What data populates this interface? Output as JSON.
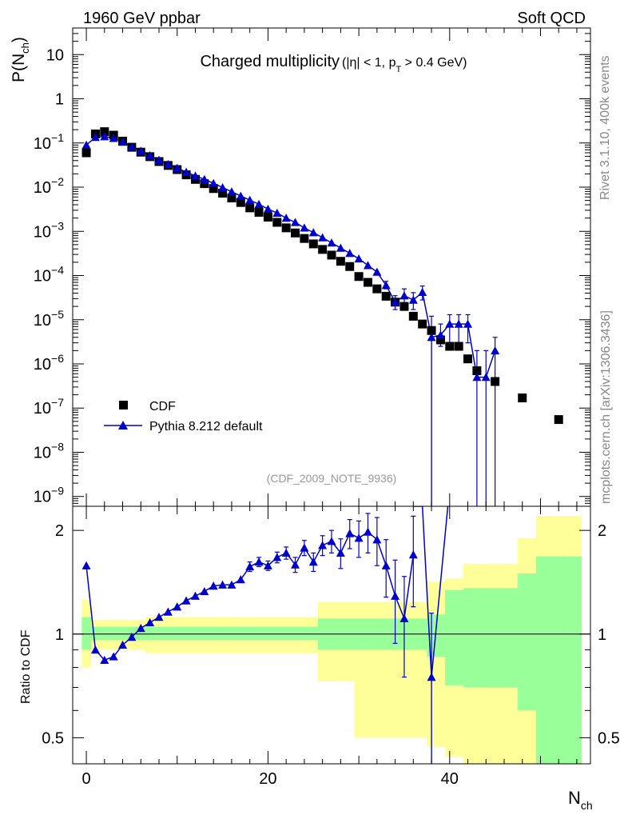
{
  "header": {
    "left": "1960 GeV ppbar",
    "right": "Soft QCD"
  },
  "title_main": "Charged multiplicity",
  "title_cuts": {
    "open": "(|η| < 1, p",
    "sub": "T",
    "close": " > 0.4 GeV)"
  },
  "analysis_id": "(CDF_2009_NOTE_9936)",
  "side_texts": {
    "rivet": "Rivet 3.1.10,  400k events",
    "mcplots": "mcplots.cern.ch [arXiv:1306.3436]"
  },
  "colors": {
    "data": "#000000",
    "mc": "#0000cc",
    "band_inner": "#99ff99",
    "band_outer": "#ffff99",
    "id_text": "#999999",
    "side_text": "#888888"
  },
  "chart_data": [
    {
      "type": "scatter",
      "panel": "main",
      "ylabel": {
        "main": "P(N",
        "sub": "ch",
        "close": ")"
      },
      "yscale": "log",
      "ylim": [
        6e-10,
        40
      ],
      "xlim": [
        -1.5,
        55.5
      ],
      "yticks": [
        {
          "value": 10,
          "label": "10",
          "exp": ""
        },
        {
          "value": 1,
          "label": "1",
          "exp": ""
        },
        {
          "value": 0.1,
          "label": "10",
          "exp": "−1"
        },
        {
          "value": 0.01,
          "label": "10",
          "exp": "−2"
        },
        {
          "value": 0.001,
          "label": "10",
          "exp": "−3"
        },
        {
          "value": 0.0001,
          "label": "10",
          "exp": "−4"
        },
        {
          "value": 1e-05,
          "label": "10",
          "exp": "−5"
        },
        {
          "value": 1e-06,
          "label": "10",
          "exp": "−6"
        },
        {
          "value": 1e-07,
          "label": "10",
          "exp": "−7"
        },
        {
          "value": 1e-08,
          "label": "10",
          "exp": "−8"
        },
        {
          "value": 1e-09,
          "label": "10",
          "exp": "−9"
        }
      ],
      "legend_position": "bottom-left",
      "series": [
        {
          "name": "CDF",
          "marker": "square",
          "x": [
            0,
            1,
            2,
            3,
            4,
            5,
            6,
            7,
            8,
            9,
            10,
            11,
            12,
            13,
            14,
            15,
            16,
            17,
            18,
            19,
            20,
            21,
            22,
            23,
            24,
            25,
            26,
            27,
            28,
            29,
            30,
            31,
            32,
            33,
            34,
            35,
            36,
            37,
            38,
            39,
            40,
            41,
            42,
            43,
            45,
            48,
            52
          ],
          "y": [
            0.06,
            0.16,
            0.18,
            0.15,
            0.11,
            0.08,
            0.062,
            0.049,
            0.038,
            0.031,
            0.025,
            0.019,
            0.015,
            0.012,
            0.0093,
            0.0073,
            0.0057,
            0.0045,
            0.0034,
            0.0027,
            0.0021,
            0.0016,
            0.0012,
            0.00092,
            0.00069,
            0.00052,
            0.00039,
            0.00029,
            0.00021,
            0.00016,
            9.5e-05,
            7e-05,
            5e-05,
            3.4e-05,
            2.5e-05,
            2e-05,
            1.2e-05,
            8e-06,
            5.7e-06,
            3.5e-06,
            2.5e-06,
            2.5e-06,
            1.3e-06,
            7e-07,
            4e-07,
            1.7e-07,
            5.5e-08
          ]
        },
        {
          "name": "Pythia 8.212 default",
          "marker": "triangle",
          "x": [
            0,
            1,
            2,
            3,
            4,
            5,
            6,
            7,
            8,
            9,
            10,
            11,
            12,
            13,
            14,
            15,
            16,
            17,
            18,
            19,
            20,
            21,
            22,
            23,
            24,
            25,
            26,
            27,
            28,
            29,
            30,
            31,
            32,
            33,
            34,
            35,
            36,
            37,
            38,
            39,
            40,
            41,
            42,
            43,
            44,
            45
          ],
          "y": [
            0.09,
            0.135,
            0.14,
            0.128,
            0.105,
            0.082,
            0.066,
            0.052,
            0.041,
            0.033,
            0.027,
            0.022,
            0.018,
            0.015,
            0.0122,
            0.0098,
            0.0079,
            0.0063,
            0.0051,
            0.0041,
            0.0032,
            0.0026,
            0.002,
            0.0016,
            0.0012,
            0.00094,
            0.00072,
            0.00055,
            0.00042,
            0.00032,
            0.00024,
            0.00017,
            0.00012,
            6e-05,
            2.5e-05,
            3.5e-05,
            2.8e-05,
            4.2e-05,
            4e-06,
            4.5e-06,
            8e-06,
            8e-06,
            8e-06,
            5e-07,
            5e-07,
            2e-06
          ],
          "err_lo": [
            0,
            0,
            0,
            0,
            0,
            0,
            0,
            0,
            0,
            0,
            0,
            0,
            0,
            0,
            0,
            0,
            0,
            0,
            0,
            0,
            0,
            0,
            0,
            0,
            0,
            0,
            0,
            0,
            0,
            0,
            0,
            0,
            0,
            1e-05,
            8e-06,
            1.3e-05,
            1.1e-05,
            1.4e-05,
            4e-06,
            2e-06,
            5e-06,
            5e-06,
            5e-06,
            5e-07,
            5e-07,
            2e-06
          ],
          "err_hi": [
            0,
            0,
            0,
            0,
            0,
            0,
            0,
            0,
            0,
            0,
            0,
            0,
            0,
            0,
            0,
            0,
            0,
            0,
            0,
            0,
            0,
            0,
            0,
            0,
            0,
            0,
            0,
            0,
            0,
            0,
            0,
            0,
            0,
            1.4e-05,
            1e-05,
            1.5e-05,
            1.3e-05,
            1.6e-05,
            8e-06,
            3.5e-06,
            5e-06,
            5e-06,
            5e-06,
            1.5e-06,
            1.5e-06,
            2e-06
          ]
        }
      ]
    },
    {
      "type": "line",
      "panel": "ratio",
      "ylabel": "Ratio to CDF",
      "xlabel": {
        "main": "N",
        "sub": "ch"
      },
      "yscale": "log",
      "ylim": [
        0.42,
        2.35
      ],
      "xlim": [
        -1.5,
        55.5
      ],
      "xticks": [
        0,
        20,
        40
      ],
      "yticks": [
        0.5,
        1,
        2
      ],
      "reference_line": 1,
      "bands": {
        "edges": [
          0,
          1,
          2,
          3,
          4,
          5,
          6,
          7,
          8,
          9,
          10,
          11,
          12,
          13,
          14,
          15,
          16,
          17,
          18,
          19,
          20,
          21,
          22,
          23,
          24,
          25,
          26,
          27,
          28,
          29,
          30,
          31,
          32,
          33,
          34,
          35,
          36,
          37,
          38,
          39,
          40,
          41,
          42,
          43,
          44,
          45,
          46,
          47,
          48,
          49,
          50,
          51,
          52,
          53,
          54,
          55
        ],
        "inner_hi": [
          1.12,
          1.05,
          1.05,
          1.05,
          1.05,
          1.05,
          1.05,
          1.05,
          1.05,
          1.05,
          1.05,
          1.05,
          1.05,
          1.05,
          1.05,
          1.05,
          1.05,
          1.05,
          1.05,
          1.05,
          1.05,
          1.05,
          1.05,
          1.05,
          1.05,
          1.05,
          1.11,
          1.11,
          1.11,
          1.11,
          1.11,
          1.11,
          1.11,
          1.11,
          1.11,
          1.11,
          1.11,
          1.11,
          1.14,
          1.14,
          1.34,
          1.34,
          1.36,
          1.36,
          1.36,
          1.36,
          1.36,
          1.36,
          1.5,
          1.5,
          1.68,
          1.68,
          1.68,
          1.68,
          1.68
        ],
        "inner_lo": [
          0.9,
          0.96,
          0.96,
          0.96,
          0.96,
          0.96,
          0.96,
          0.96,
          0.96,
          0.96,
          0.96,
          0.96,
          0.96,
          0.96,
          0.96,
          0.96,
          0.96,
          0.96,
          0.96,
          0.96,
          0.96,
          0.96,
          0.96,
          0.96,
          0.96,
          0.96,
          0.9,
          0.9,
          0.9,
          0.9,
          0.9,
          0.9,
          0.9,
          0.9,
          0.9,
          0.9,
          0.9,
          0.9,
          0.86,
          0.86,
          0.71,
          0.71,
          0.7,
          0.7,
          0.7,
          0.7,
          0.7,
          0.7,
          0.6,
          0.6,
          0.42,
          0.42,
          0.42,
          0.42,
          0.42
        ],
        "outer_hi": [
          1.26,
          1.1,
          1.1,
          1.1,
          1.1,
          1.1,
          1.1,
          1.12,
          1.12,
          1.12,
          1.12,
          1.12,
          1.12,
          1.12,
          1.12,
          1.12,
          1.12,
          1.12,
          1.12,
          1.12,
          1.12,
          1.12,
          1.12,
          1.12,
          1.12,
          1.12,
          1.24,
          1.24,
          1.24,
          1.24,
          1.24,
          1.24,
          1.24,
          1.24,
          1.24,
          1.24,
          1.24,
          1.24,
          1.42,
          1.42,
          1.45,
          1.45,
          1.6,
          1.6,
          1.6,
          1.6,
          1.6,
          1.6,
          1.9,
          1.9,
          2.2,
          2.2,
          2.2,
          2.2,
          2.2
        ],
        "outer_lo": [
          0.8,
          0.9,
          0.9,
          0.9,
          0.9,
          0.9,
          0.9,
          0.88,
          0.88,
          0.88,
          0.88,
          0.88,
          0.88,
          0.88,
          0.88,
          0.88,
          0.88,
          0.88,
          0.88,
          0.88,
          0.88,
          0.88,
          0.88,
          0.88,
          0.88,
          0.88,
          0.73,
          0.73,
          0.73,
          0.73,
          0.5,
          0.5,
          0.5,
          0.5,
          0.5,
          0.5,
          0.5,
          0.5,
          0.47,
          0.47,
          0.44,
          0.44,
          0.42,
          0.42,
          0.42,
          0.42,
          0.42,
          0.42,
          0.42,
          0.42,
          0.42,
          0.42,
          0.42,
          0.42,
          0.42
        ]
      },
      "series": [
        {
          "name": "Pythia 8.212 default / CDF",
          "marker": "triangle",
          "x": [
            0,
            1,
            2,
            3,
            4,
            5,
            6,
            7,
            8,
            9,
            10,
            11,
            12,
            13,
            14,
            15,
            16,
            17,
            18,
            19,
            20,
            21,
            22,
            23,
            24,
            25,
            26,
            27,
            28,
            29,
            30,
            31,
            32,
            33,
            34,
            35,
            36,
            38
          ],
          "y": [
            1.58,
            0.9,
            0.84,
            0.86,
            0.93,
            0.98,
            1.04,
            1.08,
            1.12,
            1.16,
            1.2,
            1.25,
            1.29,
            1.33,
            1.38,
            1.39,
            1.39,
            1.44,
            1.57,
            1.62,
            1.58,
            1.67,
            1.72,
            1.59,
            1.78,
            1.62,
            1.81,
            1.86,
            1.72,
            1.96,
            1.9,
            1.98,
            1.88,
            1.58,
            1.29,
            1.11,
            1.7,
            0.75
          ],
          "err_lo": [
            0,
            0,
            0,
            0,
            0,
            0,
            0,
            0,
            0,
            0,
            0,
            0,
            0,
            0,
            0,
            0,
            0,
            0,
            0.05,
            0.05,
            0.05,
            0.06,
            0.07,
            0.08,
            0.09,
            0.1,
            0.12,
            0.14,
            0.17,
            0.19,
            0.23,
            0.26,
            0.3,
            0.3,
            0.35,
            0.36,
            0.5,
            0.4
          ],
          "err_hi": [
            0,
            0,
            0,
            0,
            0,
            0,
            0,
            0,
            0,
            0,
            0,
            0,
            0,
            0,
            0,
            0,
            0,
            0,
            0.05,
            0.05,
            0.05,
            0.06,
            0.07,
            0.08,
            0.09,
            0.1,
            0.12,
            0.14,
            0.17,
            0.19,
            0.23,
            0.26,
            0.3,
            0.3,
            0.35,
            0.36,
            0.5,
            0.4
          ],
          "offscale_segments": [
            [
              36,
              2.35,
              37,
              2.35
            ],
            [
              37,
              2.35,
              38,
              0.75
            ],
            [
              38,
              0.75,
              39.8,
              2.35
            ]
          ]
        }
      ]
    }
  ]
}
